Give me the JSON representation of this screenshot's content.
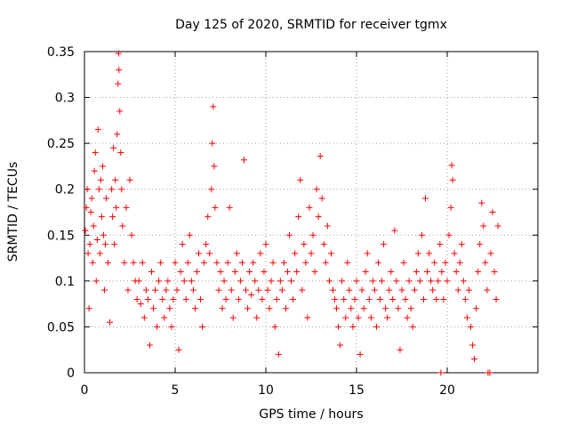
{
  "chart_data": {
    "type": "scatter",
    "title": "Day 125 of 2020, SRMTID for receiver tgmx",
    "xlabel": "GPS time / hours",
    "ylabel": "SRMTID / TECUs",
    "xlim": [
      0,
      25
    ],
    "ylim": [
      0,
      0.35
    ],
    "xticks": [
      0,
      5,
      10,
      15,
      20
    ],
    "xtick_labels": [
      "0",
      "5",
      "10",
      "15",
      "20"
    ],
    "yticks": [
      0,
      0.05,
      0.1,
      0.15,
      0.2,
      0.25,
      0.3,
      0.35
    ],
    "ytick_labels": [
      "0",
      "0.05",
      "0.1",
      "0.15",
      "0.2",
      "0.25",
      "0.3",
      "0.35"
    ],
    "grid": true,
    "marker": "+",
    "color": "#ff0000",
    "series": [
      {
        "name": "SRMTID",
        "points": [
          [
            0.05,
            0.155
          ],
          [
            0.1,
            0.18
          ],
          [
            0.15,
            0.2
          ],
          [
            0.2,
            0.13
          ],
          [
            0.25,
            0.07
          ],
          [
            0.3,
            0.14
          ],
          [
            0.35,
            0.175
          ],
          [
            0.4,
            0.19
          ],
          [
            0.45,
            0.12
          ],
          [
            0.5,
            0.16
          ],
          [
            0.55,
            0.22
          ],
          [
            0.6,
            0.24
          ],
          [
            0.65,
            0.1
          ],
          [
            0.7,
            0.145
          ],
          [
            0.75,
            0.265
          ],
          [
            0.8,
            0.2
          ],
          [
            0.85,
            0.13
          ],
          [
            0.9,
            0.21
          ],
          [
            0.95,
            0.17
          ],
          [
            1.0,
            0.225
          ],
          [
            1.05,
            0.15
          ],
          [
            1.1,
            0.09
          ],
          [
            1.15,
            0.14
          ],
          [
            1.2,
            0.19
          ],
          [
            1.3,
            0.12
          ],
          [
            1.4,
            0.055
          ],
          [
            1.5,
            0.2
          ],
          [
            1.55,
            0.17
          ],
          [
            1.6,
            0.245
          ],
          [
            1.65,
            0.14
          ],
          [
            1.7,
            0.21
          ],
          [
            1.75,
            0.18
          ],
          [
            1.8,
            0.26
          ],
          [
            1.85,
            0.315
          ],
          [
            1.88,
            0.348
          ],
          [
            1.9,
            0.33
          ],
          [
            1.95,
            0.285
          ],
          [
            2.0,
            0.24
          ],
          [
            2.05,
            0.2
          ],
          [
            2.1,
            0.16
          ],
          [
            2.2,
            0.12
          ],
          [
            2.3,
            0.18
          ],
          [
            2.4,
            0.09
          ],
          [
            2.5,
            0.21
          ],
          [
            2.6,
            0.15
          ],
          [
            2.7,
            0.12
          ],
          [
            2.8,
            0.1
          ],
          [
            2.9,
            0.08
          ],
          [
            3.0,
            0.1
          ],
          [
            3.1,
            0.075
          ],
          [
            3.2,
            0.12
          ],
          [
            3.3,
            0.06
          ],
          [
            3.4,
            0.09
          ],
          [
            3.5,
            0.08
          ],
          [
            3.6,
            0.03
          ],
          [
            3.7,
            0.11
          ],
          [
            3.8,
            0.07
          ],
          [
            3.9,
            0.09
          ],
          [
            4.0,
            0.05
          ],
          [
            4.1,
            0.1
          ],
          [
            4.2,
            0.12
          ],
          [
            4.3,
            0.08
          ],
          [
            4.4,
            0.06
          ],
          [
            4.5,
            0.09
          ],
          [
            4.6,
            0.1
          ],
          [
            4.7,
            0.07
          ],
          [
            4.8,
            0.05
          ],
          [
            4.9,
            0.08
          ],
          [
            5.0,
            0.12
          ],
          [
            5.1,
            0.09
          ],
          [
            5.2,
            0.025
          ],
          [
            5.3,
            0.11
          ],
          [
            5.4,
            0.14
          ],
          [
            5.5,
            0.1
          ],
          [
            5.6,
            0.08
          ],
          [
            5.7,
            0.12
          ],
          [
            5.8,
            0.15
          ],
          [
            5.9,
            0.1
          ],
          [
            6.0,
            0.09
          ],
          [
            6.1,
            0.07
          ],
          [
            6.2,
            0.11
          ],
          [
            6.3,
            0.13
          ],
          [
            6.4,
            0.08
          ],
          [
            6.5,
            0.05
          ],
          [
            6.6,
            0.12
          ],
          [
            6.7,
            0.14
          ],
          [
            6.8,
            0.17
          ],
          [
            6.9,
            0.13
          ],
          [
            7.0,
            0.2
          ],
          [
            7.05,
            0.25
          ],
          [
            7.1,
            0.29
          ],
          [
            7.15,
            0.225
          ],
          [
            7.2,
            0.18
          ],
          [
            7.3,
            0.12
          ],
          [
            7.4,
            0.09
          ],
          [
            7.5,
            0.11
          ],
          [
            7.6,
            0.07
          ],
          [
            7.7,
            0.1
          ],
          [
            7.8,
            0.08
          ],
          [
            7.9,
            0.12
          ],
          [
            8.0,
            0.18
          ],
          [
            8.1,
            0.09
          ],
          [
            8.2,
            0.06
          ],
          [
            8.3,
            0.11
          ],
          [
            8.4,
            0.13
          ],
          [
            8.5,
            0.08
          ],
          [
            8.6,
            0.1
          ],
          [
            8.7,
            0.12
          ],
          [
            8.8,
            0.232
          ],
          [
            8.9,
            0.09
          ],
          [
            9.0,
            0.07
          ],
          [
            9.1,
            0.11
          ],
          [
            9.2,
            0.085
          ],
          [
            9.3,
            0.12
          ],
          [
            9.4,
            0.1
          ],
          [
            9.5,
            0.06
          ],
          [
            9.6,
            0.09
          ],
          [
            9.7,
            0.13
          ],
          [
            9.8,
            0.08
          ],
          [
            9.9,
            0.11
          ],
          [
            10.0,
            0.14
          ],
          [
            10.1,
            0.09
          ],
          [
            10.2,
            0.07
          ],
          [
            10.3,
            0.1
          ],
          [
            10.4,
            0.12
          ],
          [
            10.5,
            0.05
          ],
          [
            10.6,
            0.08
          ],
          [
            10.7,
            0.02
          ],
          [
            10.8,
            0.1
          ],
          [
            10.9,
            0.09
          ],
          [
            11.0,
            0.12
          ],
          [
            11.1,
            0.07
          ],
          [
            11.2,
            0.11
          ],
          [
            11.3,
            0.15
          ],
          [
            11.4,
            0.1
          ],
          [
            11.5,
            0.08
          ],
          [
            11.6,
            0.13
          ],
          [
            11.7,
            0.11
          ],
          [
            11.8,
            0.17
          ],
          [
            11.9,
            0.21
          ],
          [
            12.0,
            0.09
          ],
          [
            12.1,
            0.14
          ],
          [
            12.2,
            0.12
          ],
          [
            12.3,
            0.06
          ],
          [
            12.4,
            0.18
          ],
          [
            12.5,
            0.13
          ],
          [
            12.6,
            0.15
          ],
          [
            12.7,
            0.11
          ],
          [
            12.8,
            0.2
          ],
          [
            12.9,
            0.17
          ],
          [
            13.0,
            0.236
          ],
          [
            13.1,
            0.19
          ],
          [
            13.2,
            0.14
          ],
          [
            13.3,
            0.12
          ],
          [
            13.4,
            0.16
          ],
          [
            13.5,
            0.1
          ],
          [
            13.6,
            0.13
          ],
          [
            13.7,
            0.09
          ],
          [
            13.8,
            0.08
          ],
          [
            13.9,
            0.07
          ],
          [
            14.0,
            0.05
          ],
          [
            14.1,
            0.03
          ],
          [
            14.2,
            0.1
          ],
          [
            14.3,
            0.08
          ],
          [
            14.4,
            0.06
          ],
          [
            14.5,
            0.12
          ],
          [
            14.6,
            0.09
          ],
          [
            14.7,
            0.07
          ],
          [
            14.8,
            0.05
          ],
          [
            14.9,
            0.08
          ],
          [
            15.0,
            0.1
          ],
          [
            15.1,
            0.06
          ],
          [
            15.2,
            0.02
          ],
          [
            15.3,
            0.09
          ],
          [
            15.4,
            0.07
          ],
          [
            15.5,
            0.11
          ],
          [
            15.6,
            0.13
          ],
          [
            15.7,
            0.08
          ],
          [
            15.8,
            0.06
          ],
          [
            15.9,
            0.1
          ],
          [
            16.0,
            0.09
          ],
          [
            16.1,
            0.05
          ],
          [
            16.2,
            0.12
          ],
          [
            16.3,
            0.08
          ],
          [
            16.4,
            0.1
          ],
          [
            16.5,
            0.14
          ],
          [
            16.6,
            0.07
          ],
          [
            16.7,
            0.06
          ],
          [
            16.8,
            0.09
          ],
          [
            16.9,
            0.11
          ],
          [
            17.0,
            0.08
          ],
          [
            17.1,
            0.155
          ],
          [
            17.2,
            0.1
          ],
          [
            17.3,
            0.07
          ],
          [
            17.4,
            0.025
          ],
          [
            17.5,
            0.09
          ],
          [
            17.6,
            0.12
          ],
          [
            17.7,
            0.08
          ],
          [
            17.8,
            0.06
          ],
          [
            17.9,
            0.1
          ],
          [
            18.0,
            0.07
          ],
          [
            18.1,
            0.05
          ],
          [
            18.2,
            0.09
          ],
          [
            18.3,
            0.11
          ],
          [
            18.4,
            0.13
          ],
          [
            18.5,
            0.1
          ],
          [
            18.6,
            0.15
          ],
          [
            18.7,
            0.08
          ],
          [
            18.8,
            0.19
          ],
          [
            18.9,
            0.11
          ],
          [
            19.0,
            0.13
          ],
          [
            19.1,
            0.1
          ],
          [
            19.2,
            0.09
          ],
          [
            19.3,
            0.12
          ],
          [
            19.4,
            0.08
          ],
          [
            19.5,
            0.1
          ],
          [
            19.6,
            0.14
          ],
          [
            19.65,
            0.0
          ],
          [
            19.7,
            0.11
          ],
          [
            19.8,
            0.08
          ],
          [
            19.9,
            0.12
          ],
          [
            20.0,
            0.1
          ],
          [
            20.1,
            0.15
          ],
          [
            20.2,
            0.18
          ],
          [
            20.25,
            0.226
          ],
          [
            20.3,
            0.21
          ],
          [
            20.4,
            0.13
          ],
          [
            20.5,
            0.11
          ],
          [
            20.6,
            0.09
          ],
          [
            20.7,
            0.12
          ],
          [
            20.8,
            0.14
          ],
          [
            20.9,
            0.1
          ],
          [
            21.0,
            0.08
          ],
          [
            21.1,
            0.06
          ],
          [
            21.2,
            0.09
          ],
          [
            21.3,
            0.05
          ],
          [
            21.4,
            0.03
          ],
          [
            21.5,
            0.015
          ],
          [
            21.6,
            0.07
          ],
          [
            21.7,
            0.11
          ],
          [
            21.8,
            0.14
          ],
          [
            21.9,
            0.185
          ],
          [
            22.0,
            0.16
          ],
          [
            22.1,
            0.12
          ],
          [
            22.2,
            0.09
          ],
          [
            22.25,
            0.0
          ],
          [
            22.35,
            0.0
          ],
          [
            22.4,
            0.13
          ],
          [
            22.5,
            0.175
          ],
          [
            22.6,
            0.11
          ],
          [
            22.7,
            0.08
          ],
          [
            22.8,
            0.16
          ]
        ]
      }
    ]
  }
}
